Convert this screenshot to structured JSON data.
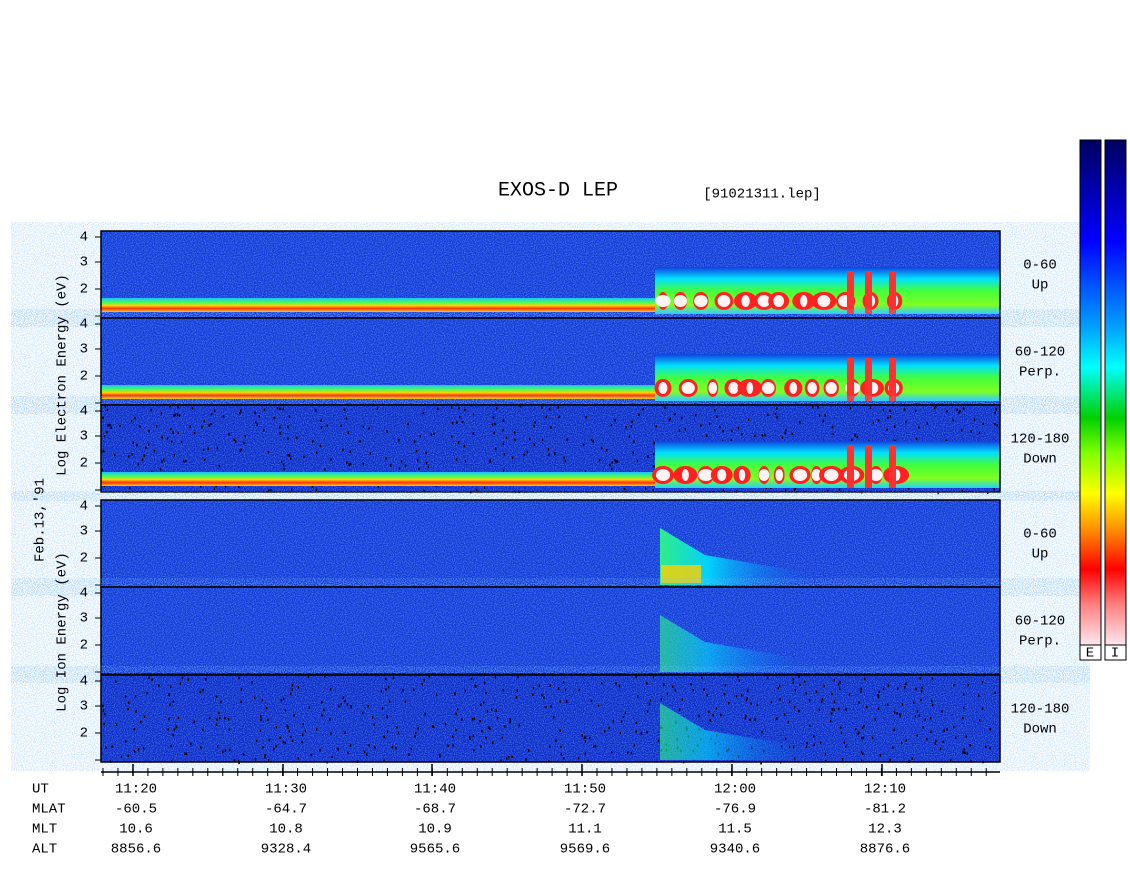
{
  "header": {
    "title": "EXOS-D LEP",
    "file": "[91021311.lep]"
  },
  "electron_axis_label": "Log  Electron  Energy (eV)",
  "ion_axis_label": "Log  Ion  Energy (eV)",
  "date": "Feb.13,'91",
  "energy_tick_labels": [
    "4",
    "3",
    "2"
  ],
  "electron_panels": [
    {
      "angle": "0-60",
      "direction": "Up"
    },
    {
      "angle": "60-120",
      "direction": "Perp."
    },
    {
      "angle": "120-180",
      "direction": "Down"
    }
  ],
  "ion_panels": [
    {
      "angle": "0-60",
      "direction": "Up"
    },
    {
      "angle": "60-120",
      "direction": "Perp."
    },
    {
      "angle": "120-180",
      "direction": "Down"
    }
  ],
  "time_axis": {
    "rows": [
      {
        "label": "UT",
        "values": [
          "11:20",
          "11:30",
          "11:40",
          "11:50",
          "12:00",
          "12:10"
        ]
      },
      {
        "label": "MLAT",
        "values": [
          "-60.5",
          "-64.7",
          "-68.7",
          "-72.7",
          "-76.9",
          "-81.2"
        ]
      },
      {
        "label": "MLT",
        "values": [
          "10.6",
          "10.8",
          "10.9",
          "11.1",
          "11.5",
          "12.3"
        ]
      },
      {
        "label": "ALT",
        "values": [
          "8856.6",
          "9328.4",
          "9565.6",
          "9569.6",
          "9340.6",
          "8876.6"
        ]
      }
    ]
  },
  "colorbar_labels": [
    "E",
    "I"
  ]
}
